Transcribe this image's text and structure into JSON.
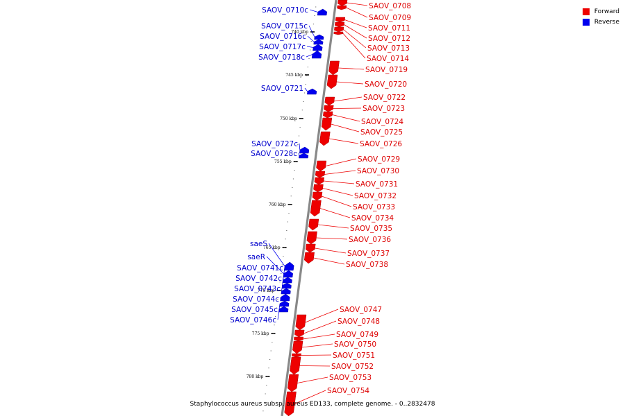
{
  "legend": {
    "forward_label": "Forward",
    "reverse_label": "Reverse",
    "forward_color": "#ee0000",
    "reverse_color": "#0000ee"
  },
  "caption": "Staphylococcus aureus subsp. aureus ED133, complete genome. - 0..2832478",
  "ticks": [
    {
      "label": "740 kbp",
      "kbp": 740
    },
    {
      "label": "745 kbp",
      "kbp": 745
    },
    {
      "label": "750 kbp",
      "kbp": 750
    },
    {
      "label": "755 kbp",
      "kbp": 755
    },
    {
      "label": "760 kbp",
      "kbp": 760
    },
    {
      "label": "765 kbp",
      "kbp": 765
    },
    {
      "label": "770 kbp",
      "kbp": 770
    },
    {
      "label": "775 kbp",
      "kbp": 775
    },
    {
      "label": "780 kbp",
      "kbp": 780
    }
  ],
  "forward_genes": [
    "SAOV_0708",
    "SAOV_0709",
    "SAOV_0711",
    "SAOV_0712",
    "SAOV_0713",
    "SAOV_0714",
    "SAOV_0719",
    "SAOV_0720",
    "SAOV_0722",
    "SAOV_0723",
    "SAOV_0724",
    "SAOV_0725",
    "SAOV_0726",
    "SAOV_0729",
    "SAOV_0730",
    "SAOV_0731",
    "SAOV_0732",
    "SAOV_0733",
    "SAOV_0734",
    "SAOV_0735",
    "SAOV_0736",
    "SAOV_0737",
    "SAOV_0738",
    "SAOV_0747",
    "SAOV_0748",
    "SAOV_0749",
    "SAOV_0750",
    "SAOV_0751",
    "SAOV_0752",
    "SAOV_0753",
    "SAOV_0754"
  ],
  "reverse_genes": [
    "SAOV_0710c",
    "SAOV_0715c",
    "SAOV_0716c",
    "SAOV_0717c",
    "SAOV_0718c",
    "SAOV_0721",
    "SAOV_0727c",
    "SAOV_0728c",
    "saeS",
    "saeR",
    "SAOV_0741c",
    "SAOV_0742c",
    "SAOV_0743c",
    "SAOV_0744c",
    "SAOV_0745c",
    "SAOV_0746c"
  ]
}
